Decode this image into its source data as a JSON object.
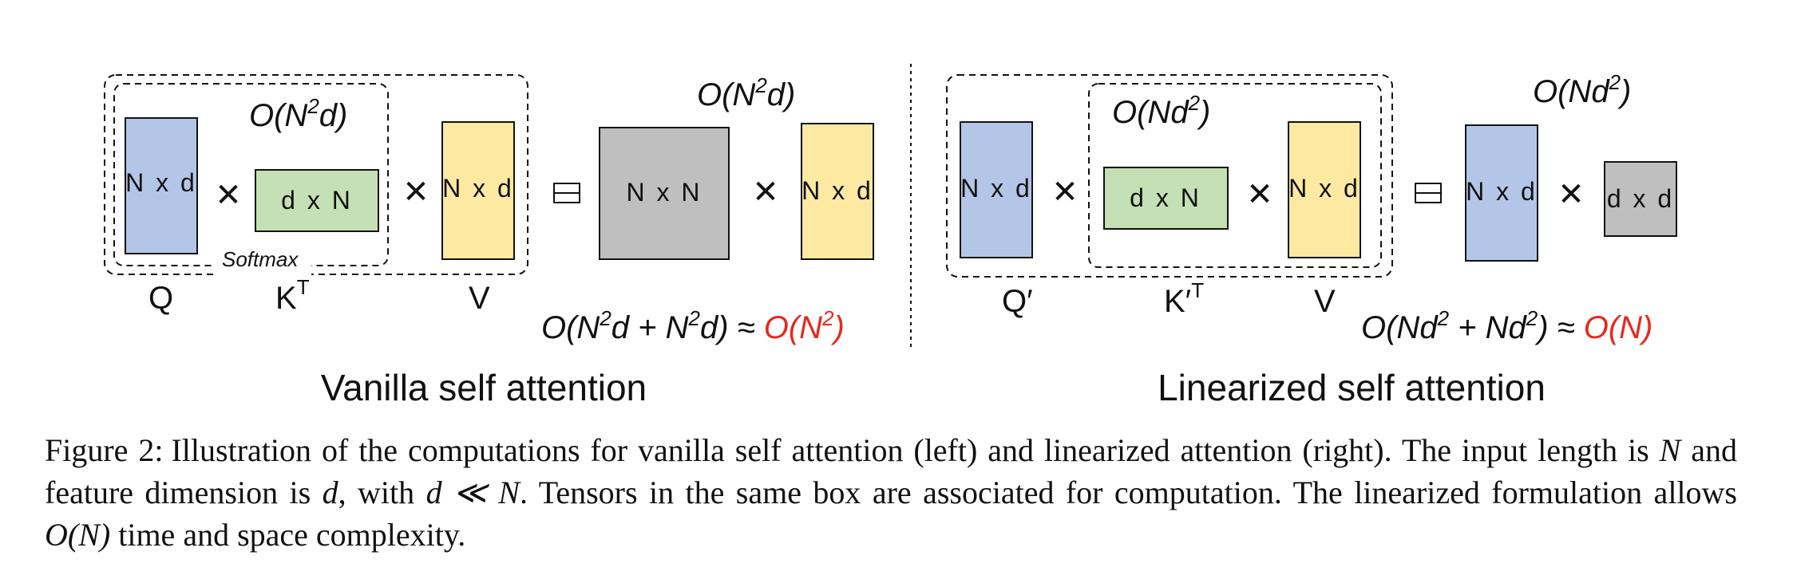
{
  "vanilla": {
    "boxes": {
      "q": "N x d",
      "kt": "d x N",
      "v": "N x d",
      "nn": "N x N",
      "v2": "N x d"
    },
    "softmax": "Softmax",
    "labels": {
      "q": "Q",
      "kt_base": "K",
      "kt_sup": "T",
      "v": "V"
    },
    "inner_complexity": {
      "a": "O(N",
      "sup": "2",
      "b": "d)"
    },
    "outer_complexity": {
      "a": "O(N",
      "sup": "2",
      "b": "d)"
    },
    "total": {
      "a": "O(N",
      "sup1": "2",
      "b": "d + N",
      "sup2": "2",
      "c": "d) ≈ ",
      "red_a": "O(N",
      "red_sup": "2",
      "red_b": ")"
    },
    "title": "Vanilla self attention"
  },
  "linear": {
    "boxes": {
      "q": "N x d",
      "kt": "d x N",
      "v": "N x d",
      "nd": "N x d",
      "dd": "d x d"
    },
    "labels": {
      "q": "Q′",
      "kt_base": "K′",
      "kt_sup": "T",
      "v": "V"
    },
    "inner_complexity": {
      "a": "O(Nd",
      "sup": "2",
      "b": ")"
    },
    "outer_complexity": {
      "a": "O(Nd",
      "sup": "2",
      "b": ")"
    },
    "total": {
      "a": "O(Nd",
      "sup1": "2",
      "b": " + Nd",
      "sup2": "2",
      "c": ") ≈ ",
      "red": "O(N)"
    },
    "title": "Linearized self attention"
  },
  "caption": {
    "label": "Figure 2:",
    "p1": "Illustration of the computations for vanilla self attention (left) and linearized attention (right). The input length is ",
    "N1": "N",
    "p2": " and feature dimension is ",
    "d1": "d",
    "p3": ", with ",
    "rel": "d ≪ N",
    "p4": ". Tensors in the same box are associated for computation. The linearized formulation allows ",
    "ON": "O(N)",
    "p5": " time and space complexity."
  },
  "colors": {
    "blue": "#b4c6e7",
    "green": "#c5e0b4",
    "yellow": "#fde9a2",
    "gray": "#bfbfbf",
    "red": "#e8281e"
  }
}
